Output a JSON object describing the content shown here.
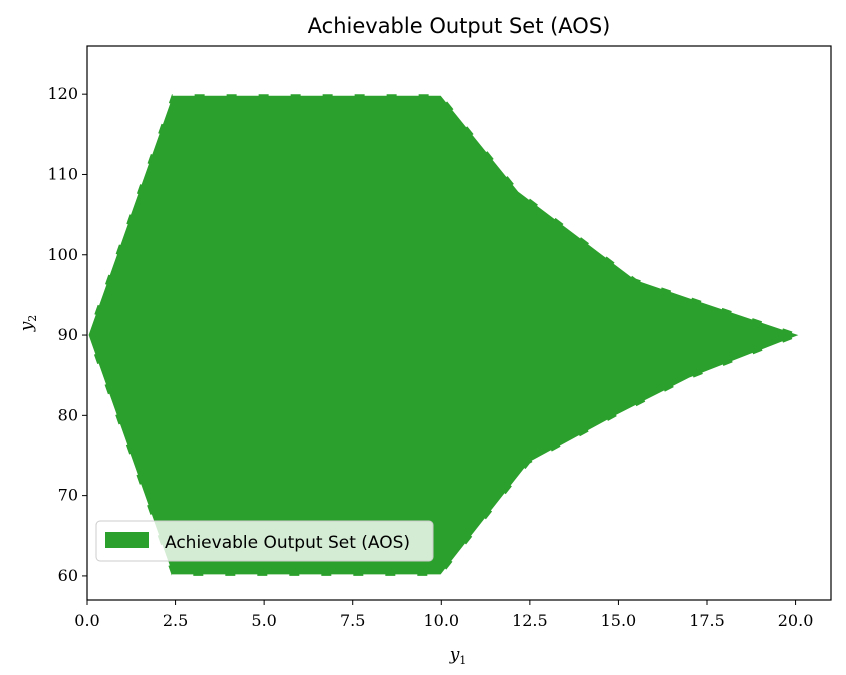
{
  "chart_data": {
    "type": "area",
    "title": "Achievable Output Set (AOS)",
    "xlabel": "y",
    "xlabel_sub": "1",
    "ylabel": "y",
    "ylabel_sub": "2",
    "xlim": [
      0,
      21
    ],
    "ylim": [
      57,
      126
    ],
    "xticks": [
      0.0,
      2.5,
      5.0,
      7.5,
      10.0,
      12.5,
      15.0,
      17.5,
      20.0
    ],
    "xtick_labels": [
      "0.0",
      "2.5",
      "5.0",
      "7.5",
      "10.0",
      "12.5",
      "15.0",
      "17.5",
      "20.0"
    ],
    "yticks": [
      60,
      70,
      80,
      90,
      100,
      110,
      120
    ],
    "ytick_labels": [
      "60",
      "70",
      "80",
      "90",
      "100",
      "110",
      "120"
    ],
    "grid": false,
    "legend_position": "lower-left",
    "series": [
      {
        "name": "Achievable Output Set (AOS)",
        "color": "#2ca02c",
        "edge_color": "#ffffff",
        "edge_style": "dashed",
        "polygon": [
          [
            0.0,
            90
          ],
          [
            2.4,
            120
          ],
          [
            10.0,
            120
          ],
          [
            12.2,
            108
          ],
          [
            15.5,
            97
          ],
          [
            20.2,
            90
          ],
          [
            17.0,
            84.5
          ],
          [
            15.0,
            80
          ],
          [
            12.5,
            74
          ],
          [
            10.0,
            60
          ],
          [
            2.4,
            60
          ],
          [
            0.0,
            90
          ]
        ]
      }
    ]
  }
}
